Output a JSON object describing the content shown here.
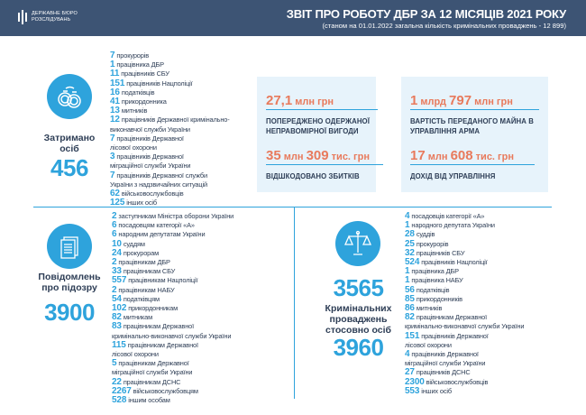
{
  "header": {
    "logo_text": "ДЕРЖАВНЕ БЮРО РОЗСЛІДУВАНЬ",
    "title": "ЗВІТ ПРО РОБОТУ ДБР ЗА 12 МІСЯЦІВ 2021 РОКУ",
    "subtitle": "(станом на 01.01.2022 загальна кількість кримінальних проваджень - 12 899)"
  },
  "detained": {
    "icon": "handcuffs-icon",
    "label": "Затримано осіб",
    "total": "456",
    "items": [
      [
        "7",
        "прокурорів"
      ],
      [
        "1",
        "працівника ДБР"
      ],
      [
        "11",
        "працівників СБУ"
      ],
      [
        "151",
        "працівників Нацполіції"
      ],
      [
        "16",
        "податківців"
      ],
      [
        "41",
        "прикордонника"
      ],
      [
        "13",
        "митників"
      ],
      [
        "12",
        "працівників Державної кримінально-"
      ],
      [
        "",
        "виконавчої служби України"
      ],
      [
        "7",
        "працівників Державної"
      ],
      [
        "",
        "лісової охорони"
      ],
      [
        "3",
        "працівників Державної"
      ],
      [
        "",
        "міграційної служби України"
      ],
      [
        "7",
        "працівників Державної служби"
      ],
      [
        "",
        "України з надзвичайних ситуацій"
      ],
      [
        "62",
        "військовослужбовців"
      ],
      [
        "125",
        "інших осіб"
      ]
    ]
  },
  "money": {
    "box1": [
      {
        "value": "27,1",
        "unit": " млн грн",
        "caption": "ПОПЕРЕДЖЕНО ОДЕРЖАНОЇ НЕПРАВОМІРНОЇ ВИГОДИ"
      },
      {
        "value": "35",
        "unit": " млн ",
        "value2": "309",
        "unit2": " тис. грн",
        "caption": "ВІДШКОДОВАНО ЗБИТКІВ"
      }
    ],
    "box2": [
      {
        "value": "1",
        "unit": " млрд ",
        "value2": "797",
        "unit2": " млн грн",
        "caption": "ВАРТІСТЬ ПЕРЕДАНОГО МАЙНА В УПРАВЛІННЯ АРМА"
      },
      {
        "value": "17",
        "unit": " млн ",
        "value2": "608",
        "unit2": " тис. грн",
        "caption": "ДОХІД ВІД УПРАВЛІННЯ"
      }
    ]
  },
  "suspicion": {
    "icon": "documents-icon",
    "label": "Повідомлень про підозру",
    "total": "3900",
    "items": [
      [
        "2",
        "заступникам Міністра оборони України"
      ],
      [
        "6",
        "посадовцям категорії «А»"
      ],
      [
        "6",
        "народним депутатам України"
      ],
      [
        "10",
        "суддям"
      ],
      [
        "24",
        "прокурорам"
      ],
      [
        "2",
        "працівникам ДБР"
      ],
      [
        "33",
        "працівникам СБУ"
      ],
      [
        "557",
        "працівникам Нацполіції"
      ],
      [
        "2",
        "працівникам НАБУ"
      ],
      [
        "54",
        "податківцям"
      ],
      [
        "102",
        "прикордонникам"
      ],
      [
        "82",
        "митникам"
      ],
      [
        "83",
        "працівникам Державної"
      ],
      [
        "",
        "кримінально-виконавчої служби України"
      ],
      [
        "115",
        "працівникам Державної"
      ],
      [
        "",
        "лісової охорони"
      ],
      [
        "5",
        "працівникам Державної"
      ],
      [
        "",
        "міграційної служби України"
      ],
      [
        "22",
        "працівникам ДСНС"
      ],
      [
        "2267",
        "військовослужбовцям"
      ],
      [
        "528",
        "іншим особам"
      ]
    ]
  },
  "cases": {
    "icon": "scales-icon",
    "total_cases": "3565",
    "label": "Кримінальних проваджень стосовно осіб",
    "total_persons": "3960",
    "items": [
      [
        "4",
        "посадовців категорії «А»"
      ],
      [
        "1",
        "народного депутата України"
      ],
      [
        "28",
        "суддів"
      ],
      [
        "25",
        "прокурорів"
      ],
      [
        "32",
        "працівників СБУ"
      ],
      [
        "524",
        "працівників Нацполіції"
      ],
      [
        "1",
        "працівника ДБР"
      ],
      [
        "1",
        "працівника НАБУ"
      ],
      [
        "56",
        "податківців"
      ],
      [
        "85",
        "прикордонників"
      ],
      [
        "86",
        "митників"
      ],
      [
        "82",
        "працівникам Державної"
      ],
      [
        "",
        "кримінально-виконавчої служби України"
      ],
      [
        "151",
        "працівників Державної"
      ],
      [
        "",
        "лісової охорони"
      ],
      [
        "4",
        "працівників Державної"
      ],
      [
        "",
        "міграційної служби України"
      ],
      [
        "27",
        "працівників ДСНС"
      ],
      [
        "2300",
        "військовослужбовців"
      ],
      [
        "553",
        "інших осіб"
      ]
    ]
  },
  "colors": {
    "header": "#3d5474",
    "accent": "#2ea3dc",
    "money": "#e87a5c",
    "box": "#e7f3fb"
  }
}
